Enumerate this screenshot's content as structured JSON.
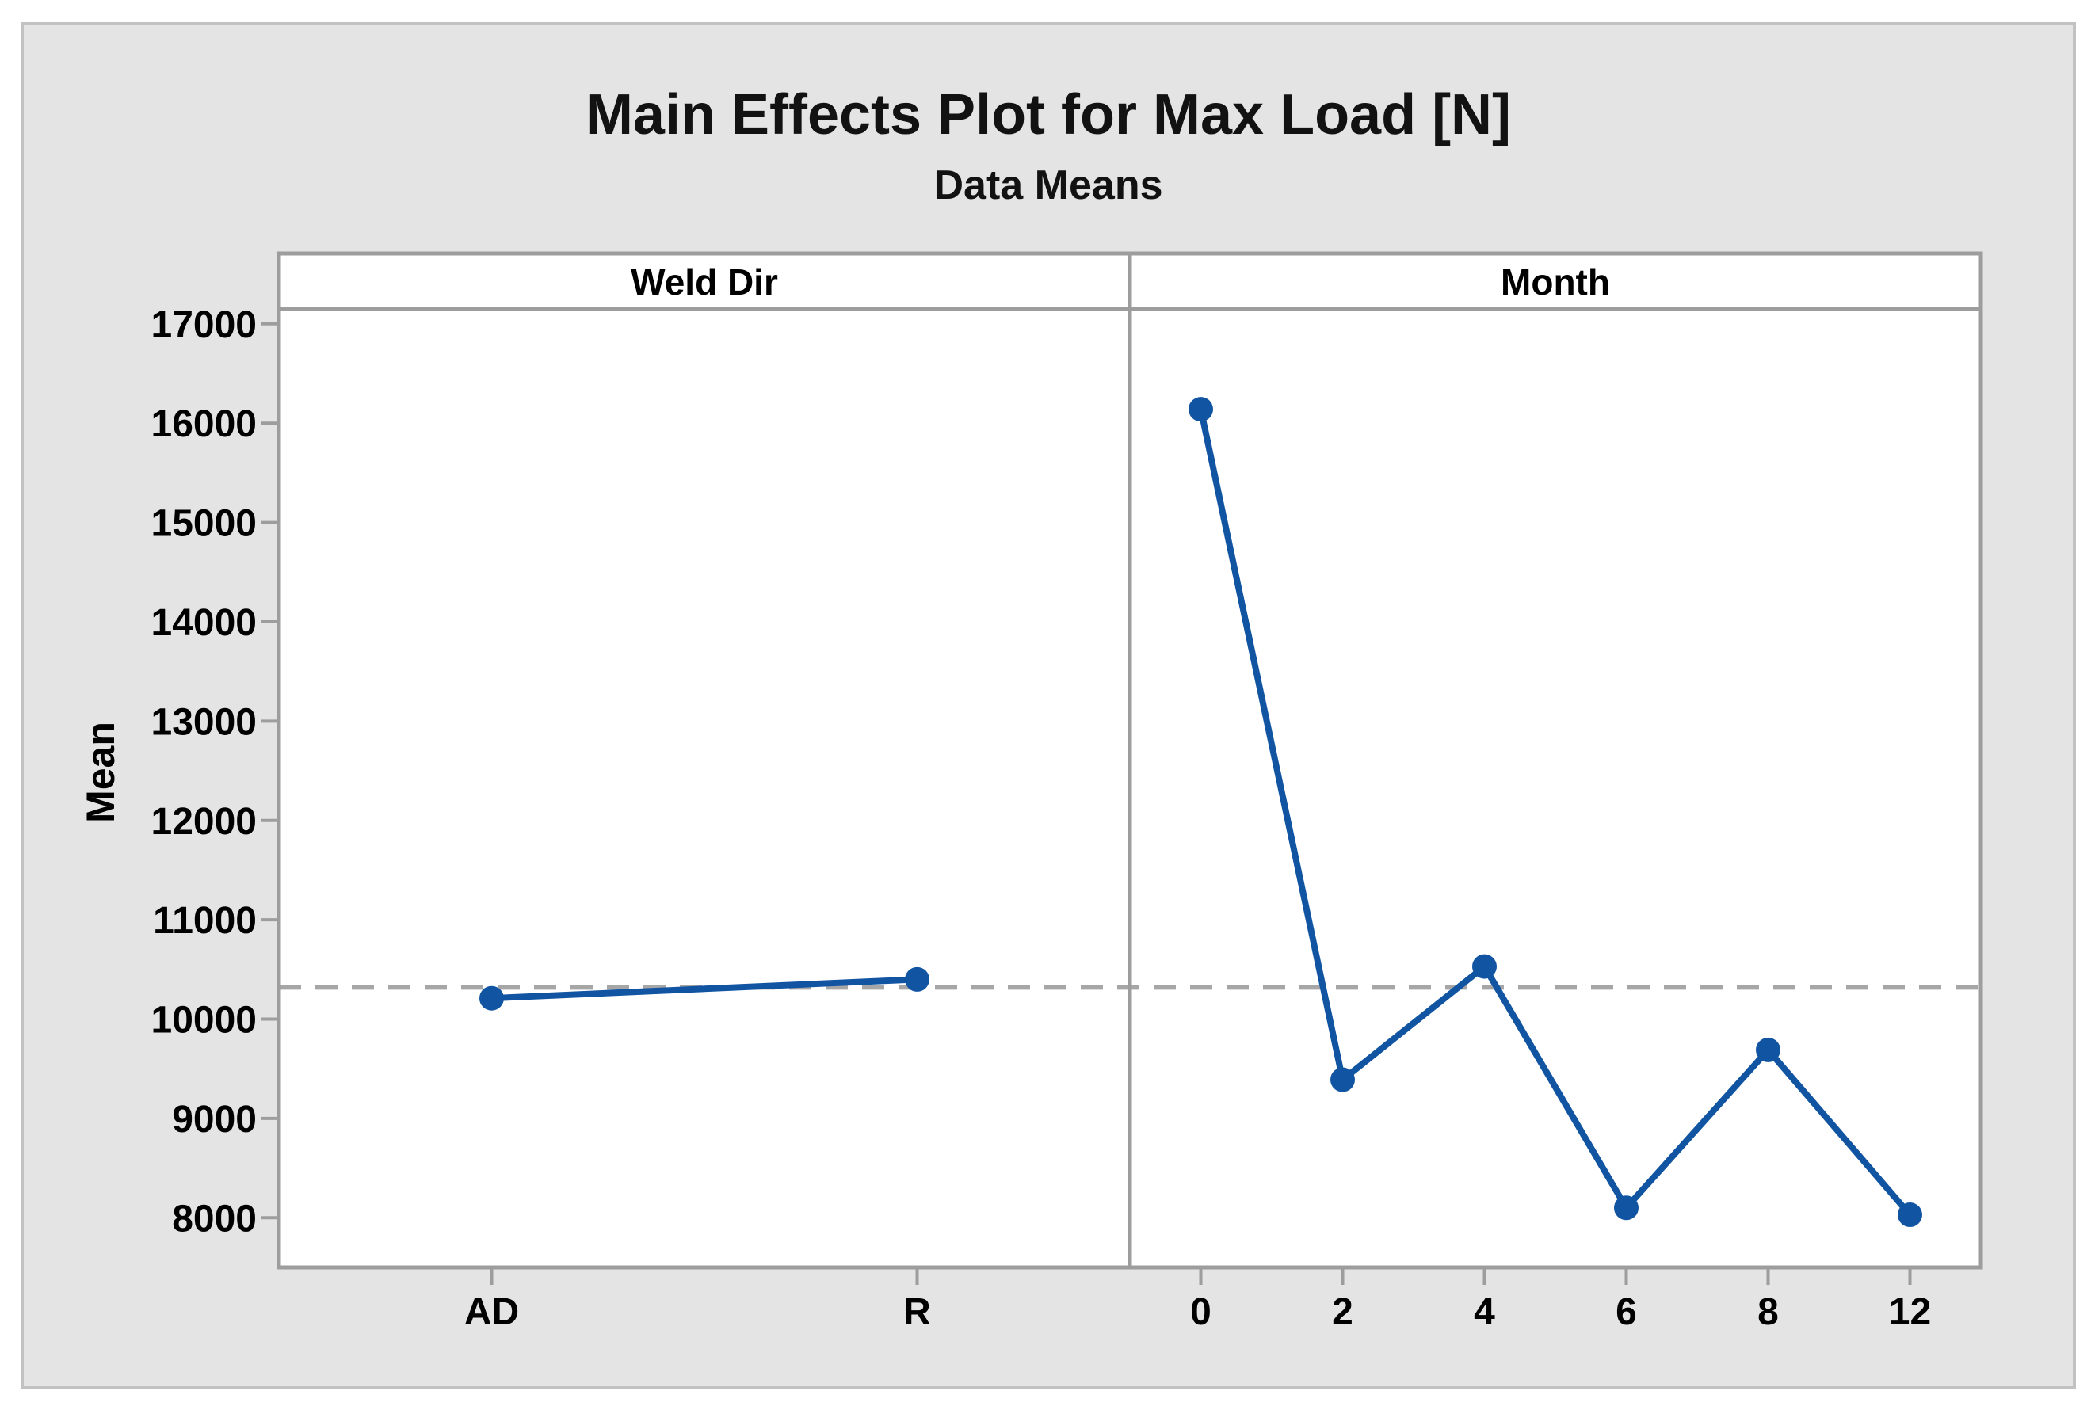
{
  "title": "Main Effects Plot for Max Load [N]",
  "subtitle": "Data Means",
  "ylabel": "Mean",
  "colors": {
    "series": "#1155a2",
    "frame": "#9d9d9d",
    "tick": "#9d9d9d",
    "reference_line": "#a6a6a6",
    "plot_background": "#ffffff",
    "figure_background": "#e4e4e4",
    "figure_border": "#c2c2c2",
    "text": "#000000"
  },
  "chart_data": {
    "type": "line",
    "title": "Main Effects Plot for Max Load [N]",
    "subtitle": "Data Means",
    "ylabel": "Mean",
    "panels": [
      {
        "label": "Weld Dir",
        "categories": [
          "AD",
          "R"
        ],
        "values": [
          10210,
          10400
        ]
      },
      {
        "label": "Month",
        "categories": [
          "0",
          "2",
          "4",
          "6",
          "8",
          "12"
        ],
        "values": [
          16140,
          9390,
          10530,
          8100,
          9690,
          8030
        ]
      }
    ],
    "reference_line": {
      "label": "grand-mean",
      "value": 10320,
      "style": "dashed"
    },
    "yticks": [
      8000,
      9000,
      10000,
      11000,
      12000,
      13000,
      14000,
      15000,
      16000,
      17000
    ],
    "ylim": [
      7500,
      17150
    ],
    "grid": false,
    "legend": "none",
    "marker": "circle"
  }
}
